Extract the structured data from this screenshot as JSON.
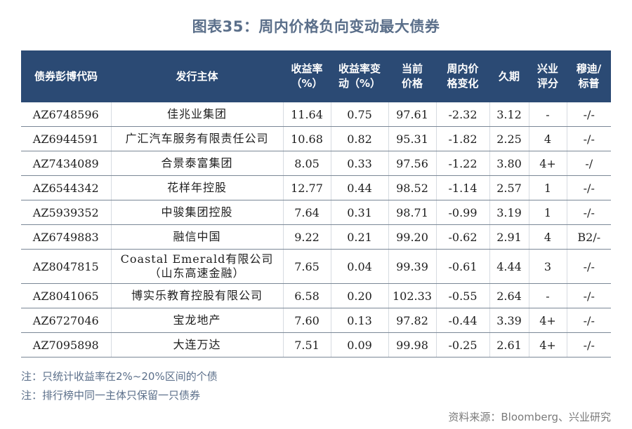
{
  "title": "图表35：周内价格负向变动最大债券",
  "table": {
    "headers": [
      [
        "债券彭博代码"
      ],
      [
        "发行主体"
      ],
      [
        "收益率",
        "（%）"
      ],
      [
        "收益率变",
        "动（%）"
      ],
      [
        "当前",
        "价格"
      ],
      [
        "周内价",
        "格变化"
      ],
      [
        "久期"
      ],
      [
        "兴业",
        "评分"
      ],
      [
        "穆迪/",
        "标普"
      ]
    ],
    "rows": [
      {
        "code": "AZ6748596",
        "issuer": [
          "佳兆业集团"
        ],
        "yield": "11.64",
        "yield_chg": "0.75",
        "price": "97.61",
        "price_chg": "-2.32",
        "duration": "3.12",
        "xy_score": "-",
        "rating": "-/-"
      },
      {
        "code": "AZ6944591",
        "issuer": [
          "广汇汽车服务有限责任公司"
        ],
        "yield": "10.68",
        "yield_chg": "0.82",
        "price": "95.31",
        "price_chg": "-1.82",
        "duration": "2.25",
        "xy_score": "4",
        "rating": "-/-"
      },
      {
        "code": "AZ7434089",
        "issuer": [
          "合景泰富集团"
        ],
        "yield": "8.05",
        "yield_chg": "0.33",
        "price": "97.56",
        "price_chg": "-1.22",
        "duration": "3.80",
        "xy_score": "4+",
        "rating": "-/"
      },
      {
        "code": "AZ6544342",
        "issuer": [
          "花样年控股"
        ],
        "yield": "12.77",
        "yield_chg": "0.44",
        "price": "98.52",
        "price_chg": "-1.14",
        "duration": "2.57",
        "xy_score": "1",
        "rating": "-/-"
      },
      {
        "code": "AZ5939352",
        "issuer": [
          "中骏集团控股"
        ],
        "yield": "7.64",
        "yield_chg": "0.31",
        "price": "98.71",
        "price_chg": "-0.99",
        "duration": "3.19",
        "xy_score": "1",
        "rating": "-/-"
      },
      {
        "code": "AZ6749883",
        "issuer": [
          "融信中国"
        ],
        "yield": "9.22",
        "yield_chg": "0.21",
        "price": "99.20",
        "price_chg": "-0.62",
        "duration": "2.91",
        "xy_score": "4",
        "rating": "B2/-"
      },
      {
        "code": "AZ8047815",
        "issuer": [
          "Coastal Emerald有限公司",
          "（山东高速金融）"
        ],
        "yield": "7.65",
        "yield_chg": "0.04",
        "price": "99.39",
        "price_chg": "-0.61",
        "duration": "4.44",
        "xy_score": "3",
        "rating": "-/-"
      },
      {
        "code": "AZ8041065",
        "issuer": [
          "博实乐教育控股有限公司"
        ],
        "yield": "6.58",
        "yield_chg": "0.20",
        "price": "102.33",
        "price_chg": "-0.55",
        "duration": "2.64",
        "xy_score": "-",
        "rating": "-/-"
      },
      {
        "code": "AZ6727046",
        "issuer": [
          "宝龙地产"
        ],
        "yield": "7.60",
        "yield_chg": "0.13",
        "price": "97.82",
        "price_chg": "-0.44",
        "duration": "3.39",
        "xy_score": "4+",
        "rating": "-/-"
      },
      {
        "code": "AZ7095898",
        "issuer": [
          "大连万达"
        ],
        "yield": "7.51",
        "yield_chg": "0.09",
        "price": "99.98",
        "price_chg": "-0.25",
        "duration": "2.61",
        "xy_score": "4+",
        "rating": "-/-"
      }
    ]
  },
  "notes": [
    "注：只统计收益率在2%~20%区间的个债",
    "注：排行榜中同一主体只保留一只债券"
  ],
  "source": "资料来源：Bloomberg、兴业研究",
  "colors": {
    "header_bg": "#2b4a74",
    "header_text": "#ffffff",
    "title": "#5b6f8a",
    "notes": "#5b6f8a",
    "row_border": "#7a8796"
  }
}
